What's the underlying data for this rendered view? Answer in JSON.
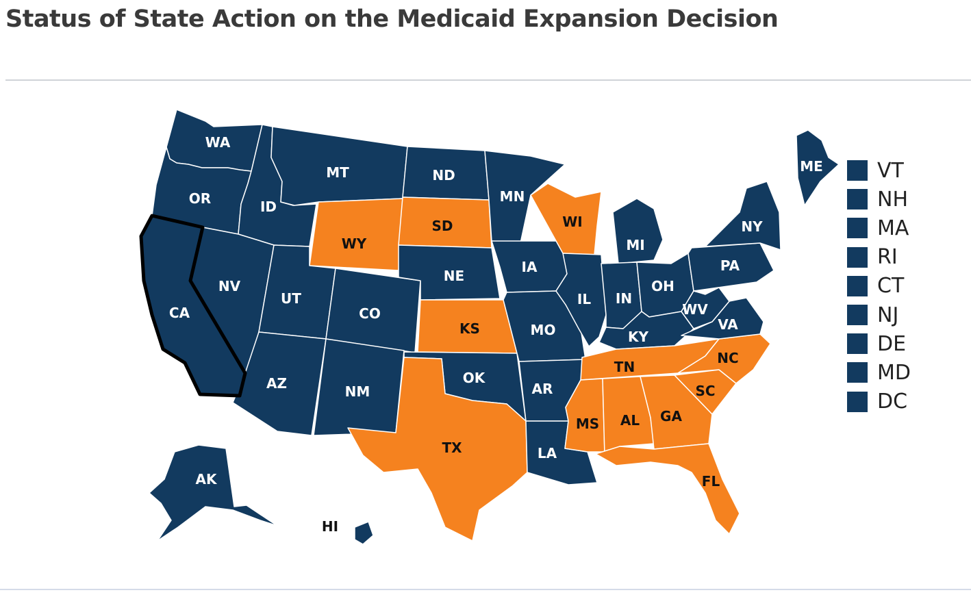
{
  "title": "Status of State Action on the Medicaid Expansion Decision",
  "colors": {
    "adopted": "#123a5f",
    "not_adopted": "#f5821f",
    "label_on_adopted": "#ffffff",
    "label_on_not_adopted": "#111111",
    "selected_outline": "#000000"
  },
  "states": [
    {
      "abbr": "WA",
      "status": "adopted"
    },
    {
      "abbr": "OR",
      "status": "adopted"
    },
    {
      "abbr": "CA",
      "status": "adopted",
      "selected": true
    },
    {
      "abbr": "ID",
      "status": "adopted"
    },
    {
      "abbr": "NV",
      "status": "adopted"
    },
    {
      "abbr": "MT",
      "status": "adopted"
    },
    {
      "abbr": "WY",
      "status": "not_adopted"
    },
    {
      "abbr": "UT",
      "status": "adopted"
    },
    {
      "abbr": "AZ",
      "status": "adopted"
    },
    {
      "abbr": "CO",
      "status": "adopted"
    },
    {
      "abbr": "NM",
      "status": "adopted"
    },
    {
      "abbr": "ND",
      "status": "adopted"
    },
    {
      "abbr": "SD",
      "status": "not_adopted"
    },
    {
      "abbr": "NE",
      "status": "adopted"
    },
    {
      "abbr": "KS",
      "status": "not_adopted"
    },
    {
      "abbr": "OK",
      "status": "adopted"
    },
    {
      "abbr": "TX",
      "status": "not_adopted"
    },
    {
      "abbr": "MN",
      "status": "adopted"
    },
    {
      "abbr": "IA",
      "status": "adopted"
    },
    {
      "abbr": "MO",
      "status": "adopted"
    },
    {
      "abbr": "AR",
      "status": "adopted"
    },
    {
      "abbr": "LA",
      "status": "adopted"
    },
    {
      "abbr": "WI",
      "status": "not_adopted"
    },
    {
      "abbr": "IL",
      "status": "adopted"
    },
    {
      "abbr": "MI",
      "status": "adopted"
    },
    {
      "abbr": "IN",
      "status": "adopted"
    },
    {
      "abbr": "OH",
      "status": "adopted"
    },
    {
      "abbr": "KY",
      "status": "adopted"
    },
    {
      "abbr": "TN",
      "status": "not_adopted"
    },
    {
      "abbr": "MS",
      "status": "not_adopted"
    },
    {
      "abbr": "AL",
      "status": "not_adopted"
    },
    {
      "abbr": "GA",
      "status": "not_adopted"
    },
    {
      "abbr": "FL",
      "status": "not_adopted"
    },
    {
      "abbr": "SC",
      "status": "not_adopted"
    },
    {
      "abbr": "NC",
      "status": "not_adopted"
    },
    {
      "abbr": "VA",
      "status": "adopted"
    },
    {
      "abbr": "WV",
      "status": "adopted"
    },
    {
      "abbr": "PA",
      "status": "adopted"
    },
    {
      "abbr": "NY",
      "status": "adopted"
    },
    {
      "abbr": "ME",
      "status": "adopted"
    },
    {
      "abbr": "AK",
      "status": "adopted"
    },
    {
      "abbr": "HI",
      "status": "adopted"
    }
  ],
  "legend": [
    "VT",
    "NH",
    "MA",
    "RI",
    "CT",
    "NJ",
    "DE",
    "MD",
    "DC"
  ]
}
